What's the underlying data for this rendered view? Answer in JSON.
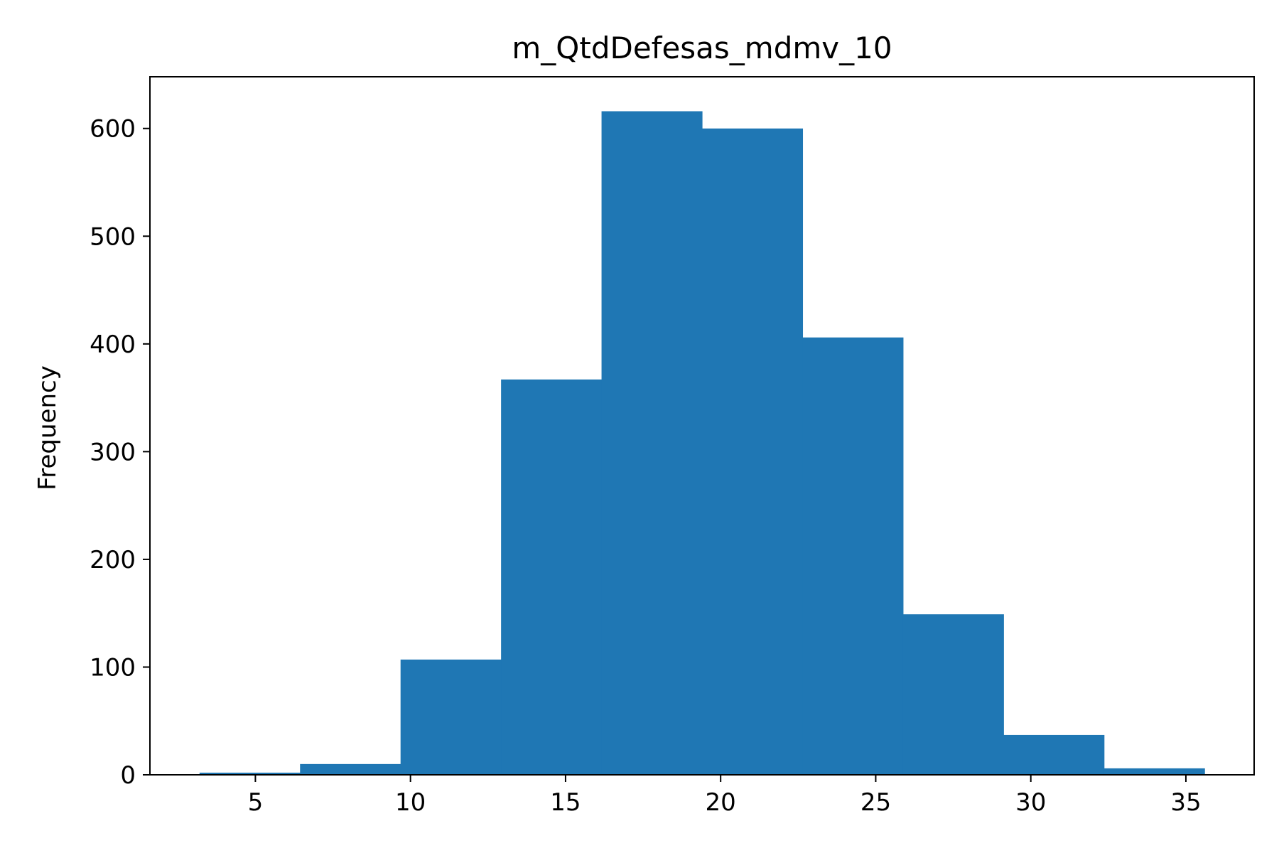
{
  "chart_data": {
    "type": "bar",
    "title": "m_QtdDefesas_mdmv_10",
    "xlabel": "",
    "ylabel": "Frequency",
    "xlim": [
      1.6,
      37.2
    ],
    "ylim": [
      0,
      648
    ],
    "xticks": [
      5,
      10,
      15,
      20,
      25,
      30,
      35
    ],
    "yticks": [
      0,
      100,
      200,
      300,
      400,
      500,
      600
    ],
    "bin_edges": [
      3.2,
      6.44,
      9.68,
      12.92,
      16.16,
      19.4,
      22.64,
      25.88,
      29.12,
      32.36,
      35.6
    ],
    "values": [
      2,
      10,
      107,
      367,
      616,
      600,
      406,
      149,
      37,
      6
    ],
    "color": "#1f77b4",
    "grid": false,
    "legend": false
  }
}
